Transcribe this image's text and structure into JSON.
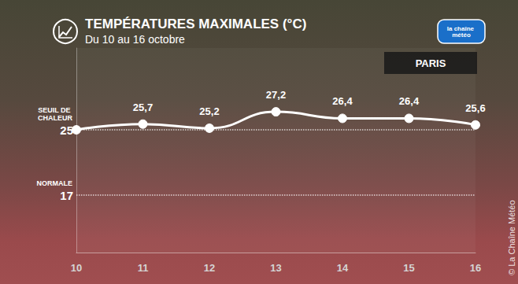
{
  "chart_data": {
    "type": "line",
    "title": "TEMPÉRATURES MAXIMALES (°C)",
    "subtitle": "Du 10 au 16 octobre",
    "location": "PARIS",
    "logo": "la chaîne météo",
    "copyright": "© La Chaîne Météo",
    "categories": [
      "10",
      "11",
      "12",
      "13",
      "14",
      "15",
      "16"
    ],
    "values": [
      25.0,
      25.7,
      25.2,
      27.2,
      26.4,
      26.4,
      25.6
    ],
    "value_labels": [
      null,
      "25,7",
      "25,2",
      "27,2",
      "26,4",
      "26,4",
      "25,6"
    ],
    "data_labels": true,
    "color": "#ffffff",
    "marker": "circle",
    "line_style": "smooth",
    "ylim": [
      10,
      35
    ],
    "yticks": [
      17,
      25
    ],
    "annotations": [
      {
        "y": 25,
        "text": "SEUIL DE CHALEUR"
      },
      {
        "y": 17,
        "text": "NORMALE"
      }
    ],
    "grid": true
  }
}
